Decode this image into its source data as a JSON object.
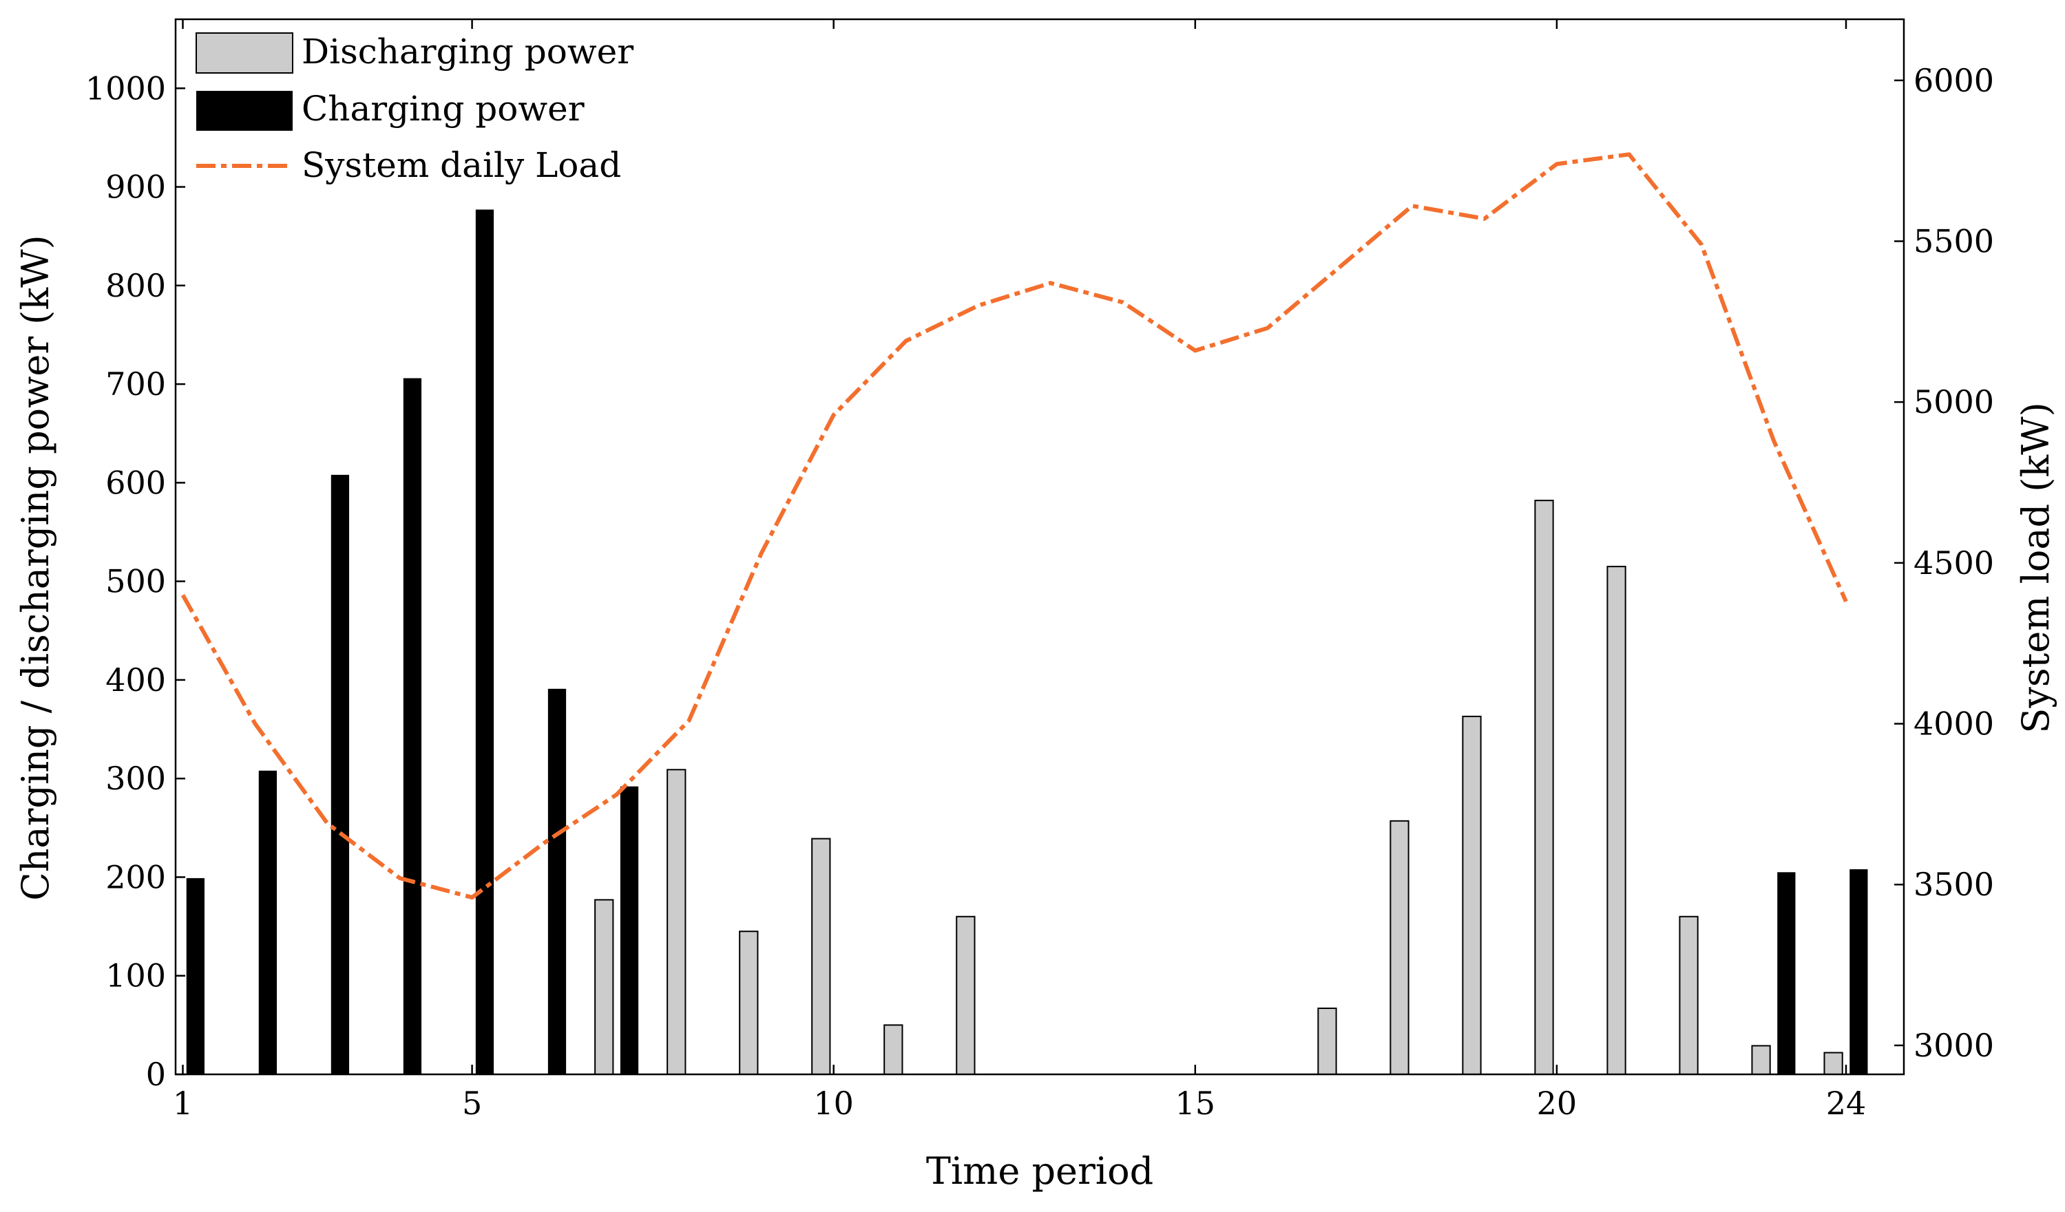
{
  "chart_data": {
    "type": "bar",
    "title": "",
    "xlabel": "Time period",
    "ylabel_left": "Charging / discharging power (kW)",
    "ylabel_right": "System load (kW)",
    "x": [
      1,
      2,
      3,
      4,
      5,
      6,
      7,
      8,
      9,
      10,
      11,
      12,
      13,
      14,
      15,
      16,
      17,
      18,
      19,
      20,
      21,
      22,
      23,
      24
    ],
    "xticks": [
      "1",
      "5",
      "10",
      "15",
      "20",
      "24"
    ],
    "xlim": [
      0.9,
      24.8
    ],
    "ylim_left": [
      0,
      1070
    ],
    "ylim_right": [
      2910,
      6190
    ],
    "yticks_left": [
      "0",
      "100",
      "200",
      "300",
      "400",
      "500",
      "600",
      "700",
      "800",
      "900",
      "1000"
    ],
    "yticks_right": [
      "3000",
      "3500",
      "4000",
      "4500",
      "5000",
      "5500",
      "6000"
    ],
    "grid": false,
    "legend_position": "top-left",
    "series": [
      {
        "name": "Discharging power",
        "type": "bar",
        "axis": "left",
        "color": "#cccccc",
        "values": [
          0,
          0,
          0,
          0,
          0,
          0,
          177,
          309,
          145,
          239,
          50,
          160,
          0,
          0,
          0,
          0,
          67,
          257,
          363,
          582,
          515,
          160,
          29,
          22
        ]
      },
      {
        "name": "Charging power",
        "type": "bar",
        "axis": "left",
        "color": "#000000",
        "values": [
          199,
          308,
          608,
          706,
          877,
          391,
          292,
          0,
          0,
          0,
          0,
          0,
          0,
          0,
          0,
          0,
          0,
          0,
          0,
          0,
          0,
          0,
          205,
          208
        ]
      },
      {
        "name": "System daily Load",
        "type": "line",
        "axis": "right",
        "color": "#f36f2e",
        "style": "dash-dot",
        "values": [
          4400,
          4000,
          3690,
          3520,
          3460,
          3630,
          3780,
          4010,
          4530,
          4960,
          5190,
          5300,
          5370,
          5310,
          5160,
          5230,
          5420,
          5610,
          5570,
          5740,
          5770,
          5490,
          4880,
          4380
        ]
      }
    ]
  }
}
